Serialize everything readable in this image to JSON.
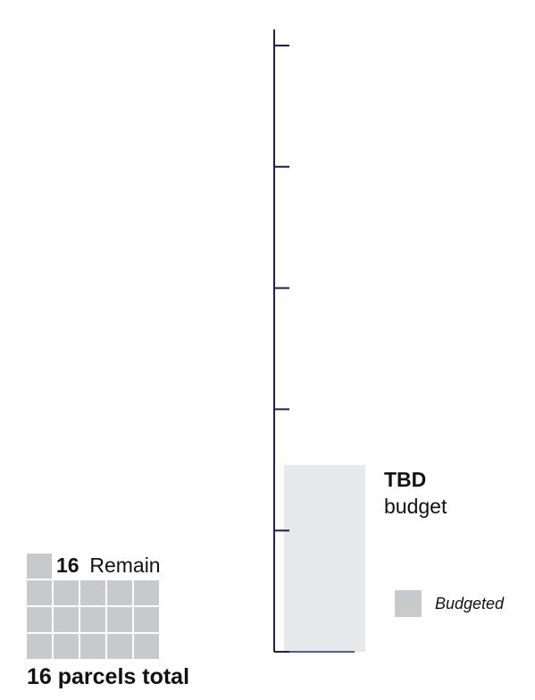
{
  "chart_data": {
    "type": "bar",
    "bars": [
      {
        "name": "Budgeted",
        "value_fraction_of_axis": 0.3,
        "label_value": "TBD",
        "label_unit": "budget"
      }
    ],
    "axis": {
      "tick_count": 6,
      "tick_labels": []
    },
    "legend": [
      {
        "label": "Budgeted",
        "color": "#c8c9cb"
      }
    ],
    "waffle": {
      "remaining_count": "16",
      "remaining_word": "Remain",
      "total_label": "16 parcels total",
      "total_cells": 16,
      "columns": 5,
      "rows": 4
    }
  },
  "colors": {
    "axis": "#1f1f4d",
    "bar_fill": "#e7e8ea",
    "waffle_cell": "#c8c9cb",
    "bar_baseline": "#5c5c8a"
  }
}
